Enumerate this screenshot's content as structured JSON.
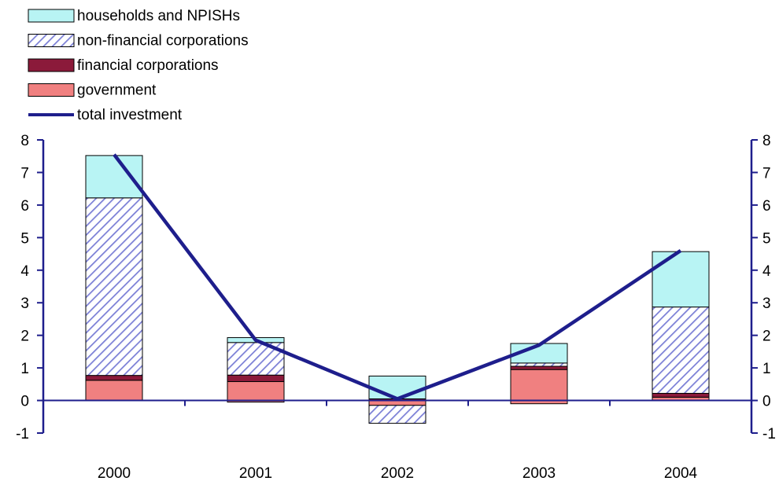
{
  "chart_data": {
    "type": "bar",
    "stacked": true,
    "categories": [
      "2000",
      "2001",
      "2002",
      "2003",
      "2004"
    ],
    "series": [
      {
        "name": "government",
        "key": "government",
        "values": [
          0.62,
          0.58,
          -0.15,
          0.95,
          0.1
        ],
        "color": "#f08080",
        "pattern": "solid"
      },
      {
        "name": "financial corporations",
        "key": "financial",
        "values": [
          0.15,
          0.2,
          0.05,
          0.1,
          0.12
        ],
        "color": "#8b1a3a",
        "pattern": "solid"
      },
      {
        "name": "non-financial corporations",
        "key": "nonfinancial",
        "values": [
          5.45,
          1.0,
          -0.55,
          0.1,
          2.65
        ],
        "color": "#7b7fd6",
        "pattern": "hatch"
      },
      {
        "name": "households and NPISHs",
        "key": "households",
        "values": [
          1.3,
          0.15,
          0.7,
          0.6,
          1.7
        ],
        "color": "#b8f4f4",
        "pattern": "solid"
      }
    ],
    "negative_offsets": {
      "government": [
        0,
        -0.05,
        0,
        -0.1,
        0
      ]
    },
    "line": {
      "name": "total investment",
      "values": [
        7.55,
        1.85,
        0.05,
        1.7,
        4.6
      ],
      "color": "#1e1e8c"
    },
    "legend_order": [
      "households and NPISHs",
      "non-financial corporations",
      "financial corporations",
      "government",
      "total investment"
    ],
    "legend_position": "top-left",
    "ylim": [
      -1,
      8
    ],
    "y_ticks": [
      "8",
      "7",
      "6",
      "5",
      "4",
      "3",
      "2",
      "1",
      "0",
      "-1"
    ],
    "y2_ticks": [
      "8",
      "7",
      "6",
      "5",
      "4",
      "3",
      "2",
      "1",
      "0",
      "-1"
    ],
    "grid": false,
    "axis_color": "#1e1e8c"
  }
}
